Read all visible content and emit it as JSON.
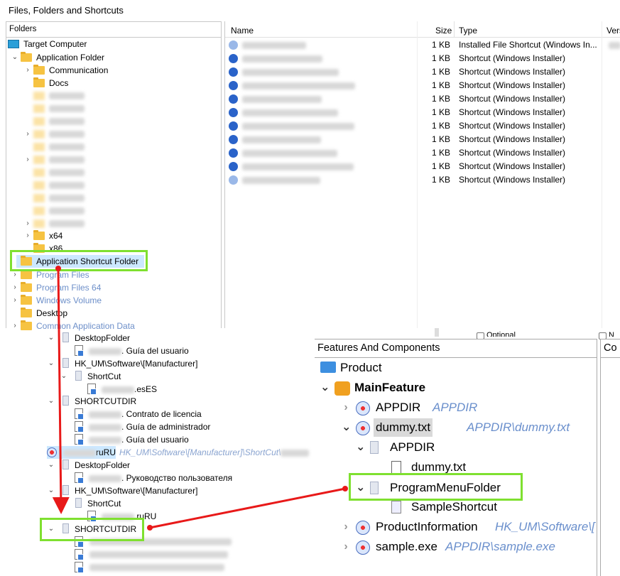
{
  "window": {
    "title": "Files, Folders and Shortcuts"
  },
  "folders": {
    "header": "Folders",
    "items": [
      {
        "label": "Target Computer"
      },
      {
        "label": "Application Folder"
      },
      {
        "label": "Communication"
      },
      {
        "label": "Docs"
      },
      {
        "label": "x64"
      },
      {
        "label": "x86"
      },
      {
        "label": "Application Shortcut Folder"
      },
      {
        "label": "Program Files"
      },
      {
        "label": "Program Files 64"
      },
      {
        "label": "Windows Volume"
      },
      {
        "label": "Desktop"
      },
      {
        "label": "Common Application Data"
      }
    ]
  },
  "files": {
    "columns": {
      "name": "Name",
      "size": "Size",
      "type": "Type",
      "version": "Vers"
    },
    "rows": [
      {
        "size": "1 KB",
        "type": "Installed File Shortcut (Windows In..."
      },
      {
        "size": "1 KB",
        "type": "Shortcut (Windows Installer)"
      },
      {
        "size": "1 KB",
        "type": "Shortcut (Windows Installer)"
      },
      {
        "size": "1 KB",
        "type": "Shortcut (Windows Installer)"
      },
      {
        "size": "1 KB",
        "type": "Shortcut (Windows Installer)"
      },
      {
        "size": "1 KB",
        "type": "Shortcut (Windows Installer)"
      },
      {
        "size": "1 KB",
        "type": "Shortcut (Windows Installer)"
      },
      {
        "size": "1 KB",
        "type": "Shortcut (Windows Installer)"
      },
      {
        "size": "1 KB",
        "type": "Shortcut (Windows Installer)"
      },
      {
        "size": "1 KB",
        "type": "Shortcut (Windows Installer)"
      },
      {
        "size": "1 KB",
        "type": "Shortcut (Windows Installer)"
      }
    ]
  },
  "component_tree": {
    "items": [
      {
        "label": "DesktopFolder"
      },
      {
        "label": ". Guía del usuario"
      },
      {
        "label": "HK_UM\\Software\\[Manufacturer]"
      },
      {
        "label": "ShortCut"
      },
      {
        "label": ".esES"
      },
      {
        "label": "SHORTCUTDIR"
      },
      {
        "label": ". Contrato de licencia"
      },
      {
        "label": ". Guía de administrador"
      },
      {
        "label": ". Guía del usuario"
      },
      {
        "label": "ruRU",
        "path": "HK_UM\\Software\\[Manufacturer]\\ShortCut\\"
      },
      {
        "label": "DesktopFolder"
      },
      {
        "label": ". Руководство пользователя"
      },
      {
        "label": "HK_UM\\Software\\[Manufacturer]"
      },
      {
        "label": "ShortCut"
      },
      {
        "label": ".ruRU"
      },
      {
        "label": "SHORTCUTDIR"
      }
    ]
  },
  "options": {
    "optional": "Optional",
    "other": "N"
  },
  "features": {
    "header": "Features And Components",
    "side_header": "Co",
    "items": [
      {
        "label": "Product"
      },
      {
        "label": "MainFeature"
      },
      {
        "label": "APPDIR",
        "path": "APPDIR"
      },
      {
        "label": "dummy.txt",
        "path": "APPDIR\\dummy.txt"
      },
      {
        "label": "APPDIR"
      },
      {
        "label": "dummy.txt"
      },
      {
        "label": "ProgramMenuFolder"
      },
      {
        "label": "SampleShortcut"
      },
      {
        "label": "ProductInformation",
        "path": "HK_UM\\Software\\["
      },
      {
        "label": "sample.exe",
        "path": "APPDIR\\sample.exe"
      }
    ]
  },
  "colors": {
    "highlight": "#7fe030",
    "arrow": "#e81919",
    "selection": "#cce8ff"
  }
}
